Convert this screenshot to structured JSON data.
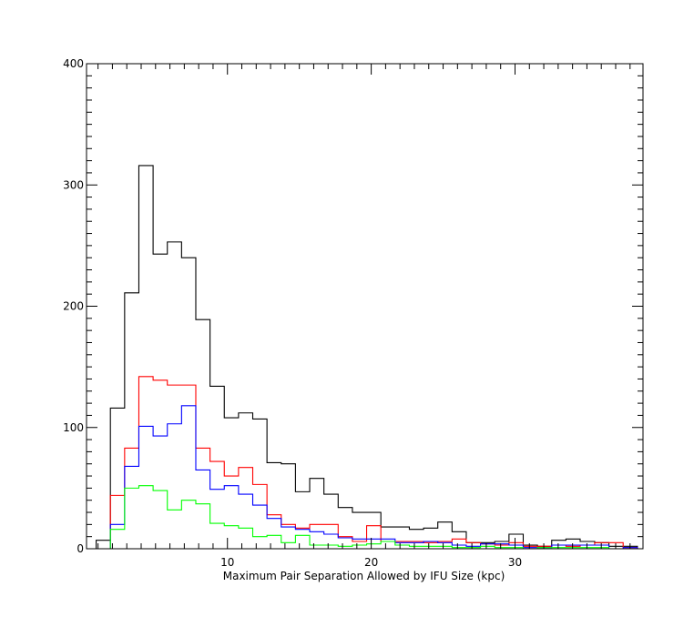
{
  "chart_data": {
    "type": "histogram",
    "xlabel": "Maximum Pair Separation Allowed by IFU Size (kpc)",
    "ylabel": "",
    "title": "",
    "xlim": [
      0.2,
      38.9
    ],
    "ylim": [
      0,
      400
    ],
    "x_ticks": [
      {
        "value": 10,
        "label": "10"
      },
      {
        "value": 20,
        "label": "20"
      },
      {
        "value": 30,
        "label": "30"
      }
    ],
    "y_ticks": [
      {
        "value": 0,
        "label": "0"
      },
      {
        "value": 100,
        "label": "100"
      },
      {
        "value": 200,
        "label": "200"
      },
      {
        "value": 300,
        "label": "300"
      },
      {
        "value": 400,
        "label": "400"
      }
    ],
    "bin_edges": [
      0.87,
      1.86,
      2.85,
      3.84,
      4.83,
      5.82,
      6.81,
      7.8,
      8.79,
      9.78,
      10.77,
      11.76,
      12.75,
      13.74,
      14.73,
      15.72,
      16.71,
      17.7,
      18.69,
      19.68,
      20.67,
      21.66,
      22.65,
      23.64,
      24.63,
      25.62,
      26.61,
      27.6,
      28.59,
      29.58,
      30.57,
      31.56,
      32.55,
      33.54,
      34.53,
      35.54,
      36.53,
      37.52,
      38.51
    ],
    "series": [
      {
        "color": "#000000",
        "values": [
          7,
          116,
          211,
          316,
          243,
          253,
          240,
          189,
          134,
          108,
          112,
          107,
          71,
          70,
          47,
          58,
          45,
          34,
          30,
          30,
          18,
          18,
          16,
          17,
          22,
          14,
          5,
          5,
          6,
          12,
          3,
          2,
          7,
          8,
          6,
          5,
          2,
          2
        ]
      },
      {
        "color": "#ff0000",
        "values": [
          0,
          44,
          83,
          142,
          139,
          135,
          135,
          83,
          72,
          60,
          67,
          53,
          28,
          20,
          17,
          20,
          20,
          10,
          6,
          19,
          6,
          6,
          6,
          5,
          6,
          8,
          5,
          4,
          3,
          5,
          2,
          2,
          3,
          2,
          3,
          5,
          5,
          1
        ]
      },
      {
        "color": "#0000ff",
        "values": [
          0,
          20,
          68,
          101,
          93,
          103,
          118,
          65,
          49,
          52,
          45,
          36,
          25,
          18,
          16,
          14,
          12,
          9,
          8,
          8,
          8,
          5,
          5,
          6,
          5,
          3,
          2,
          4,
          4,
          3,
          1,
          1,
          3,
          3,
          3,
          3,
          0,
          1
        ]
      },
      {
        "color": "#00ff00",
        "values": [
          0,
          16,
          50,
          52,
          48,
          32,
          40,
          37,
          21,
          19,
          17,
          10,
          11,
          5,
          11,
          3,
          3,
          2,
          3,
          4,
          6,
          3,
          2,
          2,
          2,
          1,
          1,
          2,
          1,
          1,
          0,
          1,
          1,
          1,
          1,
          1,
          0,
          0
        ]
      }
    ]
  }
}
